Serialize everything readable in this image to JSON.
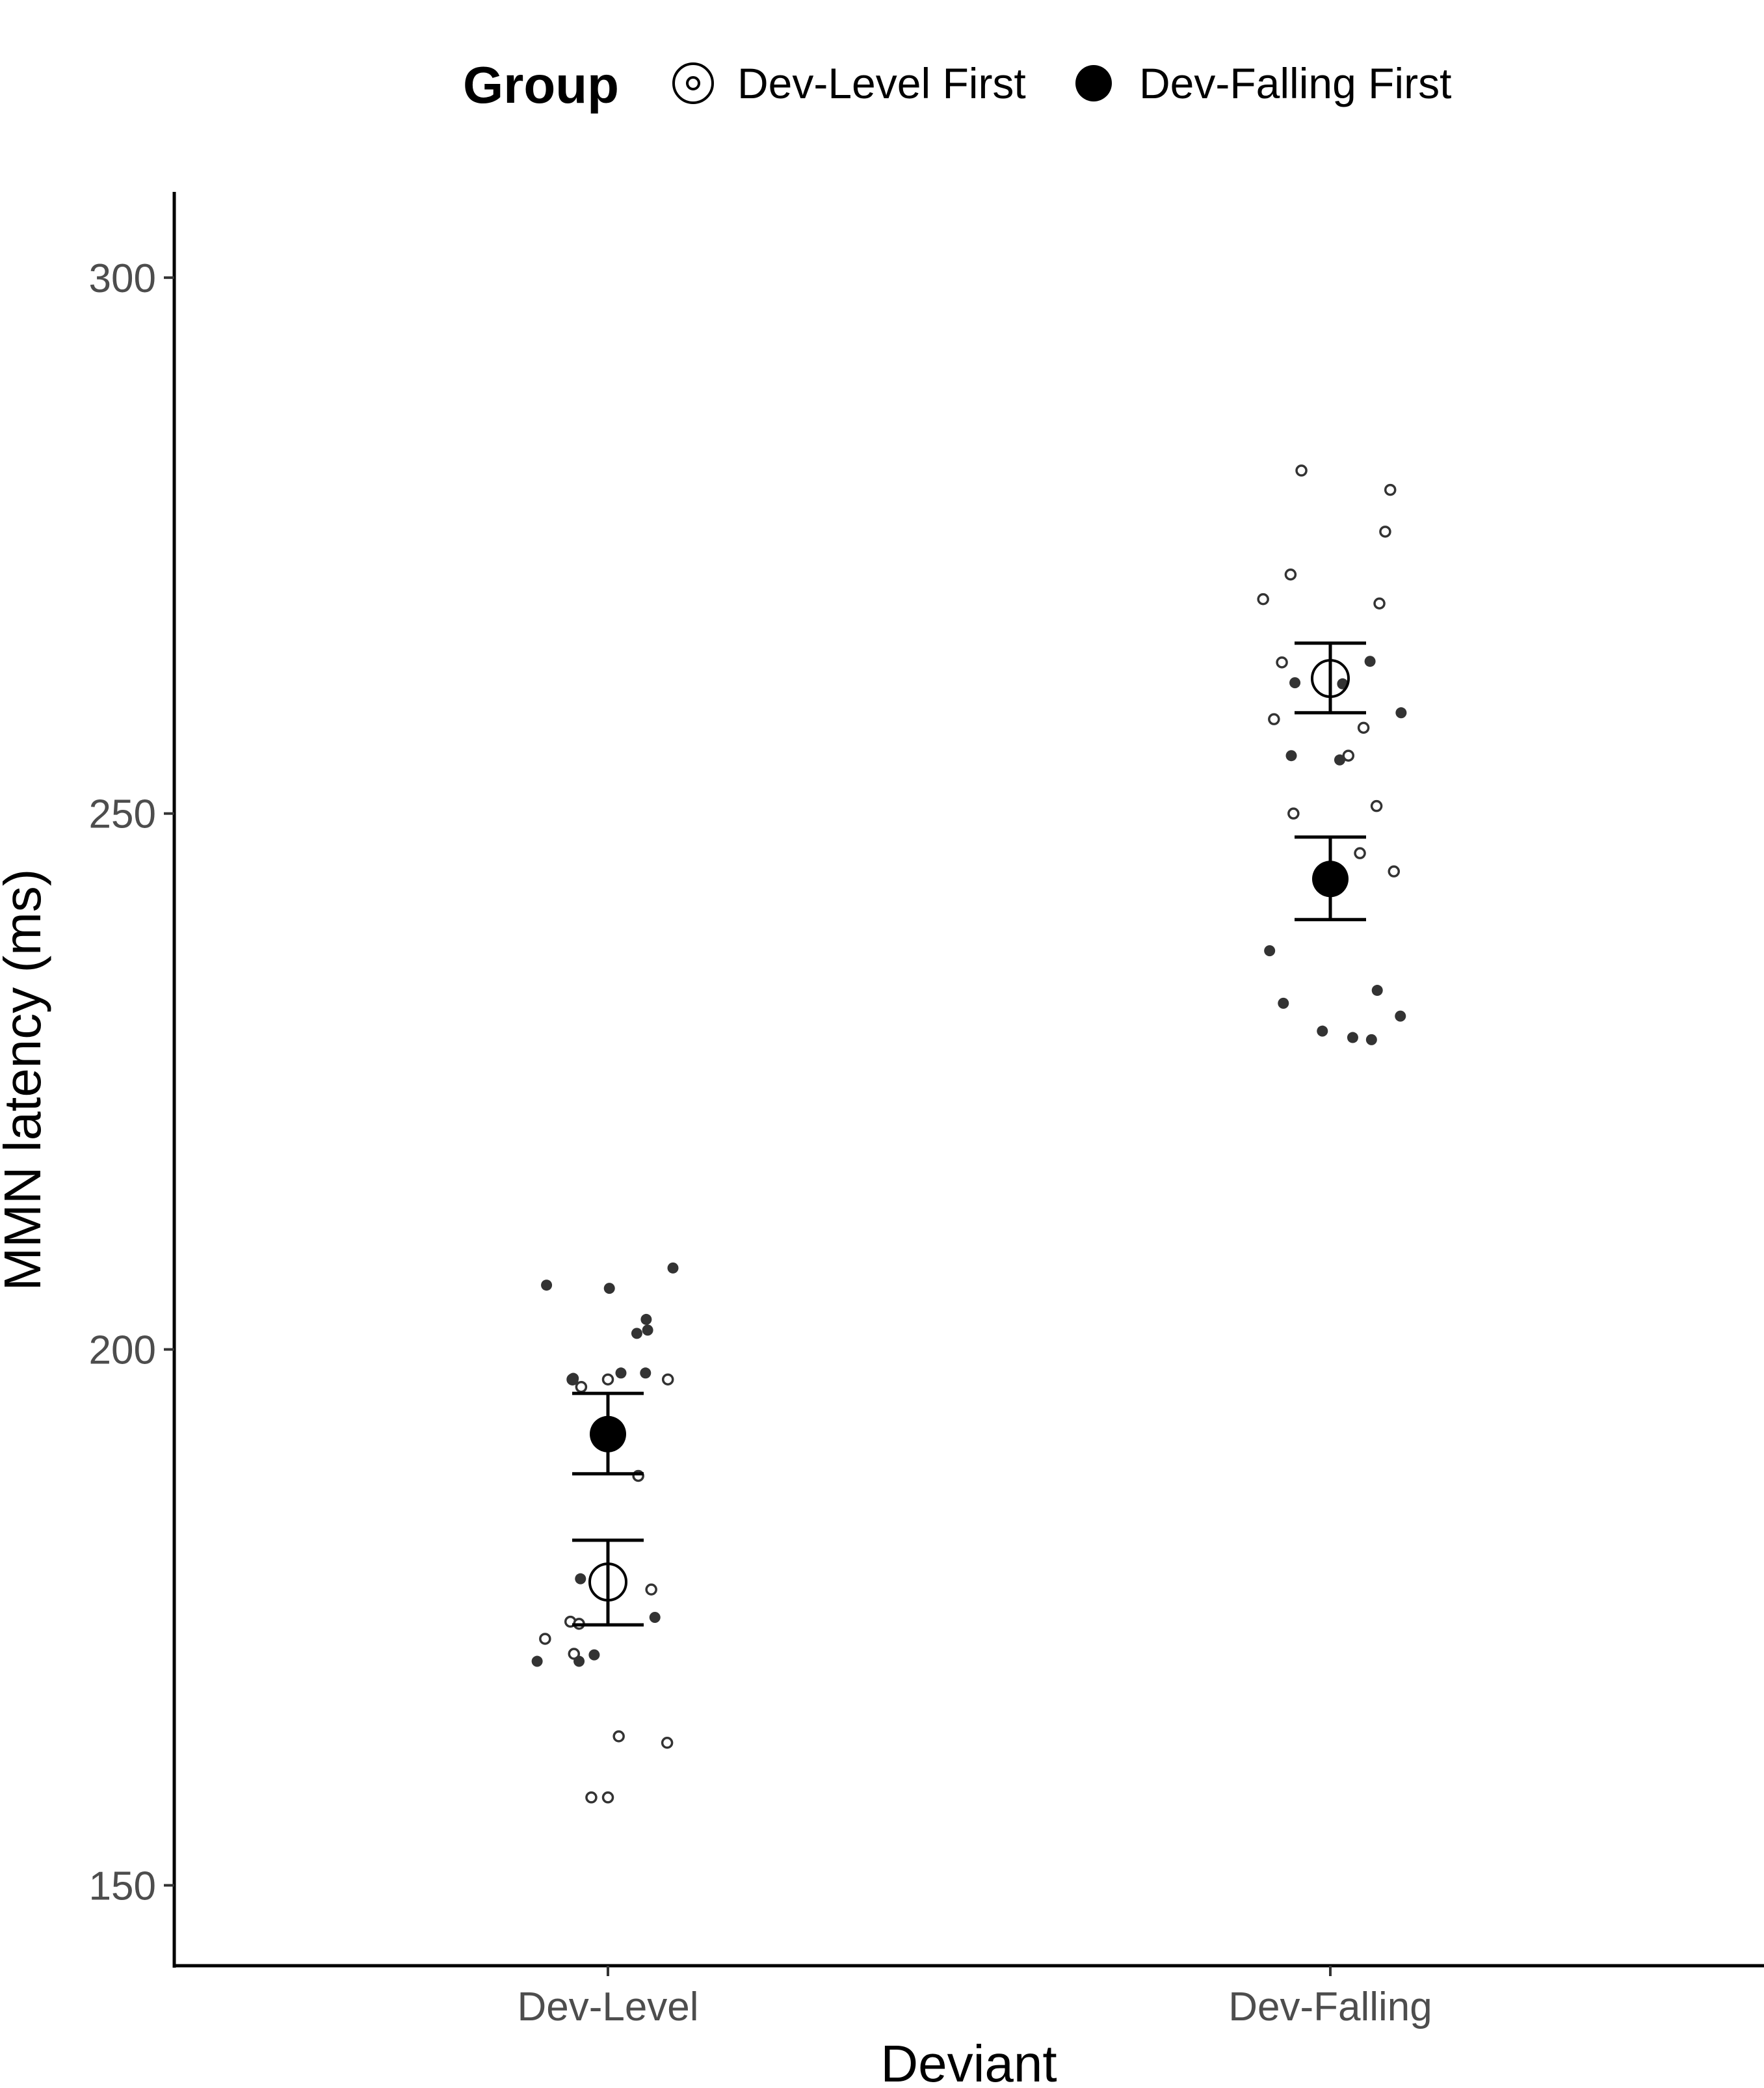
{
  "chart_data": {
    "type": "scatter",
    "xlabel": "Deviant",
    "ylabel": "MMN latency (ms)",
    "categories": [
      "Dev-Level",
      "Dev-Falling"
    ],
    "ylim": [
      142.5,
      308
    ],
    "yticks": [
      150,
      200,
      250,
      300
    ],
    "grid": false,
    "legend": {
      "title": "Group",
      "position": "top",
      "entries": [
        "Dev-Level First",
        "Dev-Falling First"
      ]
    },
    "series": [
      {
        "name": "Dev-Level First",
        "marker": "open-circle",
        "summary": [
          {
            "category": "Dev-Level",
            "mean": 178.3,
            "lower": 174.3,
            "upper": 182.2
          },
          {
            "category": "Dev-Falling",
            "mean": 262.6,
            "lower": 259.4,
            "upper": 265.9
          }
        ],
        "points": [
          {
            "category": "Dev-Level",
            "jitter": -0.049,
            "y": 197.2
          },
          {
            "category": "Dev-Level",
            "jitter": -0.037,
            "y": 196.5
          },
          {
            "category": "Dev-Level",
            "jitter": 0.0,
            "y": 197.2
          },
          {
            "category": "Dev-Level",
            "jitter": 0.083,
            "y": 197.2
          },
          {
            "category": "Dev-Level",
            "jitter": 0.042,
            "y": 188.2
          },
          {
            "category": "Dev-Level",
            "jitter": 0.06,
            "y": 177.6
          },
          {
            "category": "Dev-Level",
            "jitter": -0.052,
            "y": 174.6
          },
          {
            "category": "Dev-Level",
            "jitter": -0.04,
            "y": 174.4
          },
          {
            "category": "Dev-Level",
            "jitter": -0.087,
            "y": 173.0
          },
          {
            "category": "Dev-Level",
            "jitter": -0.047,
            "y": 171.6
          },
          {
            "category": "Dev-Level",
            "jitter": 0.015,
            "y": 163.9
          },
          {
            "category": "Dev-Level",
            "jitter": 0.082,
            "y": 163.3
          },
          {
            "category": "Dev-Level",
            "jitter": -0.023,
            "y": 158.2
          },
          {
            "category": "Dev-Level",
            "jitter": 0.0,
            "y": 158.2
          },
          {
            "category": "Dev-Falling",
            "jitter": -0.04,
            "y": 282.0
          },
          {
            "category": "Dev-Falling",
            "jitter": 0.083,
            "y": 280.2
          },
          {
            "category": "Dev-Falling",
            "jitter": 0.076,
            "y": 276.3
          },
          {
            "category": "Dev-Falling",
            "jitter": -0.055,
            "y": 272.3
          },
          {
            "category": "Dev-Falling",
            "jitter": -0.093,
            "y": 270.0
          },
          {
            "category": "Dev-Falling",
            "jitter": 0.068,
            "y": 269.6
          },
          {
            "category": "Dev-Falling",
            "jitter": -0.067,
            "y": 264.1
          },
          {
            "category": "Dev-Falling",
            "jitter": -0.078,
            "y": 258.8
          },
          {
            "category": "Dev-Falling",
            "jitter": 0.046,
            "y": 258.0
          },
          {
            "category": "Dev-Falling",
            "jitter": 0.025,
            "y": 255.4
          },
          {
            "category": "Dev-Falling",
            "jitter": 0.064,
            "y": 250.7
          },
          {
            "category": "Dev-Falling",
            "jitter": -0.051,
            "y": 250.0
          },
          {
            "category": "Dev-Falling",
            "jitter": 0.041,
            "y": 246.3
          },
          {
            "category": "Dev-Falling",
            "jitter": 0.088,
            "y": 244.6
          }
        ]
      },
      {
        "name": "Dev-Falling First",
        "marker": "filled-circle",
        "summary": [
          {
            "category": "Dev-Level",
            "mean": 192.1,
            "lower": 188.4,
            "upper": 195.9
          },
          {
            "category": "Dev-Falling",
            "mean": 243.9,
            "lower": 240.1,
            "upper": 247.8
          }
        ],
        "points": [
          {
            "category": "Dev-Level",
            "jitter": 0.09,
            "y": 207.6
          },
          {
            "category": "Dev-Level",
            "jitter": -0.085,
            "y": 206.0
          },
          {
            "category": "Dev-Level",
            "jitter": 0.002,
            "y": 205.7
          },
          {
            "category": "Dev-Level",
            "jitter": 0.053,
            "y": 202.8
          },
          {
            "category": "Dev-Level",
            "jitter": 0.055,
            "y": 201.8
          },
          {
            "category": "Dev-Level",
            "jitter": 0.04,
            "y": 201.5
          },
          {
            "category": "Dev-Level",
            "jitter": 0.018,
            "y": 197.8
          },
          {
            "category": "Dev-Level",
            "jitter": 0.052,
            "y": 197.8
          },
          {
            "category": "Dev-Level",
            "jitter": -0.048,
            "y": 197.3
          },
          {
            "category": "Dev-Level",
            "jitter": -0.038,
            "y": 178.6
          },
          {
            "category": "Dev-Level",
            "jitter": 0.065,
            "y": 175.0
          },
          {
            "category": "Dev-Level",
            "jitter": -0.019,
            "y": 171.5
          },
          {
            "category": "Dev-Level",
            "jitter": -0.04,
            "y": 170.9
          },
          {
            "category": "Dev-Level",
            "jitter": -0.098,
            "y": 170.9
          },
          {
            "category": "Dev-Falling",
            "jitter": 0.055,
            "y": 264.2
          },
          {
            "category": "Dev-Falling",
            "jitter": -0.049,
            "y": 262.2
          },
          {
            "category": "Dev-Falling",
            "jitter": 0.017,
            "y": 262.1
          },
          {
            "category": "Dev-Falling",
            "jitter": 0.098,
            "y": 259.4
          },
          {
            "category": "Dev-Falling",
            "jitter": -0.054,
            "y": 255.4
          },
          {
            "category": "Dev-Falling",
            "jitter": 0.013,
            "y": 255.0
          },
          {
            "category": "Dev-Falling",
            "jitter": -0.084,
            "y": 237.2
          },
          {
            "category": "Dev-Falling",
            "jitter": 0.065,
            "y": 233.5
          },
          {
            "category": "Dev-Falling",
            "jitter": -0.065,
            "y": 232.3
          },
          {
            "category": "Dev-Falling",
            "jitter": 0.097,
            "y": 231.1
          },
          {
            "category": "Dev-Falling",
            "jitter": -0.011,
            "y": 229.7
          },
          {
            "category": "Dev-Falling",
            "jitter": 0.031,
            "y": 229.1
          },
          {
            "category": "Dev-Falling",
            "jitter": 0.057,
            "y": 228.9
          }
        ]
      }
    ]
  }
}
